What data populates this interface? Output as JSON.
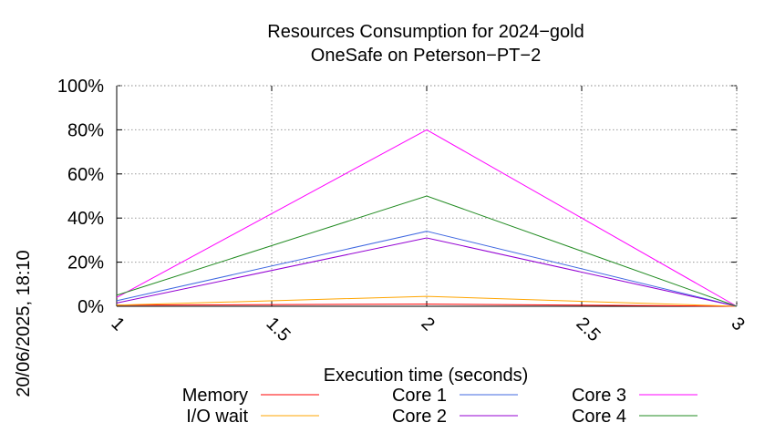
{
  "chart_data": {
    "type": "line",
    "title": "Resources Consumption for 2024−gold",
    "subtitle": "OneSafe on Peterson−PT−2",
    "xlabel": "Execution time (seconds)",
    "ylabel": "",
    "side_label": "20/06/2025, 18:10",
    "xlim": [
      1,
      3
    ],
    "ylim": [
      0,
      100
    ],
    "xticks": [
      1,
      1.5,
      2,
      2.5,
      3
    ],
    "xtick_labels": [
      "1",
      "1.5",
      "2",
      "2.5",
      "3"
    ],
    "yticks": [
      0,
      20,
      40,
      60,
      80,
      100
    ],
    "ytick_labels": [
      "0%",
      "20%",
      "40%",
      "60%",
      "80%",
      "100%"
    ],
    "grid": true,
    "legend_position": "bottom",
    "x": [
      1,
      2,
      3
    ],
    "series": [
      {
        "name": "Memory",
        "color": "#ff0000",
        "values": [
          0.5,
          1,
          0
        ]
      },
      {
        "name": "I/O wait",
        "color": "#ffa500",
        "values": [
          0.5,
          4.5,
          0
        ]
      },
      {
        "name": "Core 1",
        "color": "#4169e1",
        "values": [
          2.5,
          34,
          0
        ]
      },
      {
        "name": "Core 2",
        "color": "#9400d3",
        "values": [
          1.5,
          31,
          0
        ]
      },
      {
        "name": "Core 3",
        "color": "#ff00ff",
        "values": [
          4,
          80,
          0
        ]
      },
      {
        "name": "Core 4",
        "color": "#228b22",
        "values": [
          5,
          50,
          0
        ]
      }
    ]
  }
}
